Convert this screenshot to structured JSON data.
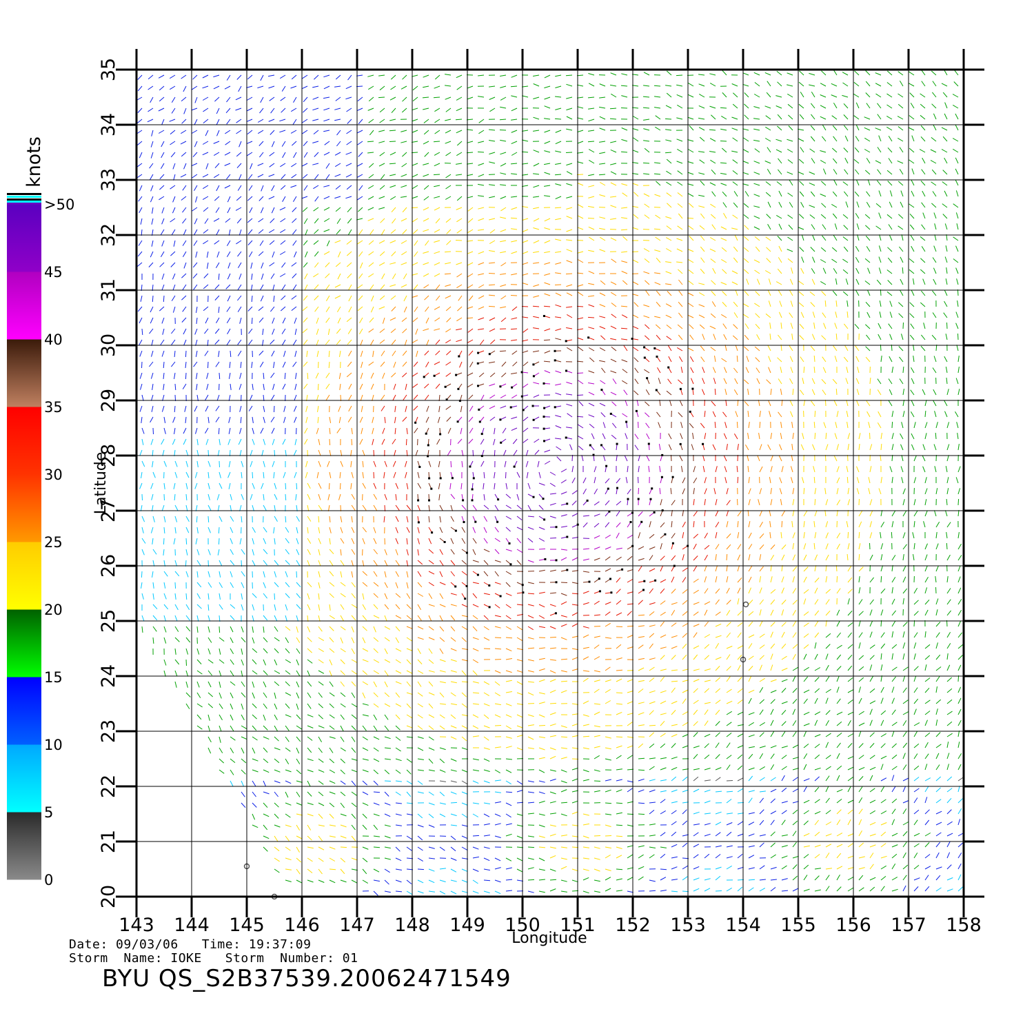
{
  "map": {
    "lon_ticks": [
      143,
      144,
      145,
      146,
      147,
      148,
      149,
      150,
      151,
      152,
      153,
      154,
      155,
      156,
      157,
      158
    ],
    "lat_ticks": [
      20,
      21,
      22,
      23,
      24,
      25,
      26,
      27,
      28,
      29,
      30,
      31,
      32,
      33,
      34,
      35
    ],
    "lon_range": [
      143,
      158
    ],
    "lat_range": [
      20,
      35
    ],
    "xlabel": "Longitude",
    "ylabel": "Latitude",
    "grid": true,
    "wind_field": {
      "description_units": "knots",
      "center_lon": 150.6,
      "center_lat": 27.8,
      "rain_flag_color": "#000000",
      "storm_marks": [
        {
          "lon": 154.05,
          "lat": 25.3
        },
        {
          "lon": 154.0,
          "lat": 24.3
        },
        {
          "lon": 145.0,
          "lat": 20.55
        },
        {
          "lon": 145.5,
          "lat": 20.0
        }
      ]
    }
  },
  "colorbar": {
    "title": "knots",
    "labels": [
      ">50",
      "45",
      "40",
      "35",
      "30",
      "25",
      "20",
      "15",
      "10",
      "5",
      "0"
    ],
    "bands": [
      {
        "from": 0,
        "to": 5,
        "top": "#2a2a2a",
        "bottom": "#8a8a8a"
      },
      {
        "from": 5,
        "to": 10,
        "top": "#00a8ff",
        "bottom": "#00ffff"
      },
      {
        "from": 10,
        "to": 15,
        "top": "#0000ff",
        "bottom": "#0060ff"
      },
      {
        "from": 15,
        "to": 20,
        "top": "#006000",
        "bottom": "#00ff00"
      },
      {
        "from": 20,
        "to": 25,
        "top": "#ffcc00",
        "bottom": "#ffff00"
      },
      {
        "from": 25,
        "to": 30,
        "top": "#ff3300",
        "bottom": "#ff9900"
      },
      {
        "from": 30,
        "to": 35,
        "top": "#ff0000",
        "bottom": "#ff3300"
      },
      {
        "from": 35,
        "to": 40,
        "top": "#3a1a0a",
        "bottom": "#c08060"
      },
      {
        "from": 40,
        "to": 45,
        "top": "#b000c0",
        "bottom": "#ff00ff"
      },
      {
        "from": 45,
        "to": 50,
        "top": "#5a00c0",
        "bottom": "#9000c8"
      }
    ],
    "speed_colors": [
      "#555555",
      "#00c8ff",
      "#0a1ee6",
      "#00a000",
      "#ffdc00",
      "#ff8c00",
      "#e61400",
      "#7a2a10",
      "#b400c8",
      "#6a00c0"
    ]
  },
  "footer": {
    "date_line": "Date: 09/03/06   Time: 19:37:09",
    "storm_line": "Storm  Name: IOKE   Storm  Number: 01",
    "file_id": "BYU  QS_S2B37539.20062471549"
  }
}
